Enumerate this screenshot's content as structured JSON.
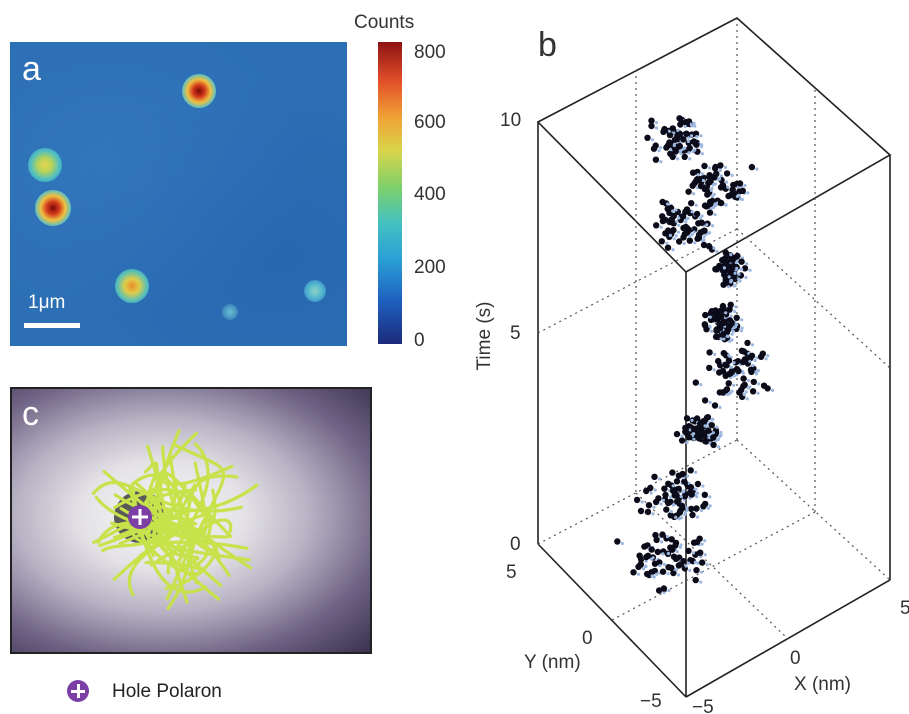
{
  "panels": {
    "a": {
      "letter": "a",
      "scale_bar": "1μm"
    },
    "b": {
      "letter": "b"
    },
    "c": {
      "letter": "c"
    }
  },
  "colorbar": {
    "title": "Counts",
    "ticks": [
      "800",
      "600",
      "400",
      "200",
      "0"
    ],
    "colors": [
      "#1c2a7a",
      "#1e5fbd",
      "#2a9fd6",
      "#43c1c1",
      "#7fd069",
      "#d8d54a",
      "#f0a234",
      "#e2502a",
      "#8e1212"
    ]
  },
  "legend": {
    "label": "Hole Polaron"
  },
  "chart_data": {
    "type": "scatter",
    "zlabel": "Time (s)",
    "ylabel": "Y (nm)",
    "xlabel": "X (nm)",
    "zticks": [
      "10",
      "5",
      "0"
    ],
    "yticks": [
      "5",
      "0",
      "−5"
    ],
    "xticks": [
      "5",
      "0",
      "−5"
    ],
    "zlim": [
      0,
      10
    ],
    "ylim": [
      -5,
      5
    ],
    "xlim": [
      -5,
      5
    ]
  }
}
